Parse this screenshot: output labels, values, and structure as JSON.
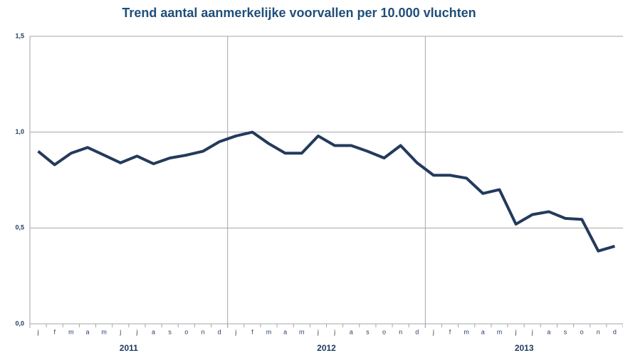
{
  "chart_data": {
    "type": "line",
    "title": "Trend aantal aanmerkelijke voorvallen per 10.000 vluchten",
    "categories": [
      "j",
      "f",
      "m",
      "a",
      "m",
      "j",
      "j",
      "a",
      "s",
      "o",
      "n",
      "d",
      "j",
      "f",
      "m",
      "a",
      "m",
      "j",
      "j",
      "a",
      "s",
      "o",
      "n",
      "d",
      "j",
      "f",
      "m",
      "a",
      "m",
      "j",
      "j",
      "a",
      "s",
      "o",
      "n",
      "d"
    ],
    "years": [
      "2011",
      "2012",
      "2013"
    ],
    "series": [
      {
        "color": "#233a5c",
        "values": [
          0.9,
          0.83,
          0.89,
          0.92,
          0.88,
          0.84,
          0.875,
          0.835,
          0.865,
          0.88,
          0.9,
          0.95,
          0.98,
          1.0,
          0.94,
          0.89,
          0.89,
          0.98,
          0.93,
          0.93,
          0.9,
          0.865,
          0.93,
          0.84,
          0.775,
          0.775,
          0.76,
          0.68,
          0.7,
          0.52,
          0.57,
          0.585,
          0.55,
          0.545,
          0.38,
          0.405
        ]
      }
    ],
    "ylim": [
      0,
      1.5
    ],
    "yticks": [
      {
        "value": 0,
        "label": "0,0"
      },
      {
        "value": 0.5,
        "label": "0,5"
      },
      {
        "value": 1.0,
        "label": "1,0"
      },
      {
        "value": 1.5,
        "label": "1,5"
      }
    ],
    "grid": true
  }
}
